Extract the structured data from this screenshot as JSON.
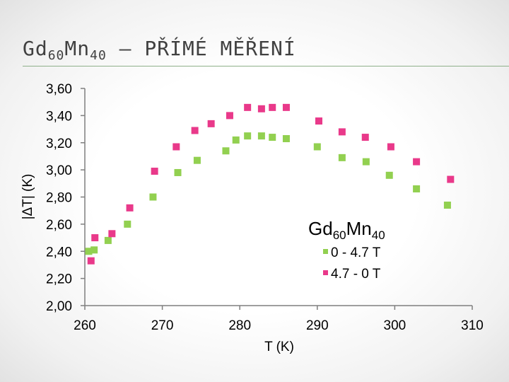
{
  "slide": {
    "title_main": "Gd",
    "title_sub1": "60",
    "title_mid": "Mn",
    "title_sub2": "40",
    "title_tail": " – PŘÍMÉ MĚŘENÍ"
  },
  "chart_data": {
    "type": "scatter",
    "xlabel": "T (K)",
    "ylabel": "|ΔT| (K)",
    "xlim": [
      260,
      310
    ],
    "ylim": [
      2.0,
      3.6
    ],
    "x_ticks": [
      "260",
      "270",
      "280",
      "290",
      "300",
      "310"
    ],
    "y_ticks": [
      "2,00",
      "2,20",
      "2,40",
      "2,60",
      "2,80",
      "3,00",
      "3,20",
      "3,40",
      "3,60"
    ],
    "grid": false,
    "legend": {
      "title_main": "Gd",
      "title_sub1": "60",
      "title_mid": "Mn",
      "title_sub2": "40",
      "placement": "right"
    },
    "series": [
      {
        "name": "0 - 4.7 T",
        "color": "#92d050",
        "points": [
          [
            260.5,
            2.4
          ],
          [
            261.2,
            2.41
          ],
          [
            263.0,
            2.48
          ],
          [
            265.5,
            2.6
          ],
          [
            268.8,
            2.8
          ],
          [
            272.0,
            2.98
          ],
          [
            274.5,
            3.07
          ],
          [
            278.2,
            3.14
          ],
          [
            279.5,
            3.22
          ],
          [
            281.0,
            3.25
          ],
          [
            282.8,
            3.25
          ],
          [
            284.2,
            3.24
          ],
          [
            286.0,
            3.23
          ],
          [
            290.0,
            3.17
          ],
          [
            293.2,
            3.09
          ],
          [
            296.3,
            3.06
          ],
          [
            299.3,
            2.96
          ],
          [
            302.8,
            2.86
          ],
          [
            306.8,
            2.74
          ]
        ]
      },
      {
        "name": "4.7 - 0 T",
        "color": "#e9398a",
        "points": [
          [
            260.8,
            2.33
          ],
          [
            261.3,
            2.5
          ],
          [
            263.5,
            2.53
          ],
          [
            265.8,
            2.72
          ],
          [
            269.0,
            2.99
          ],
          [
            271.8,
            3.17
          ],
          [
            274.2,
            3.29
          ],
          [
            276.3,
            3.34
          ],
          [
            278.7,
            3.4
          ],
          [
            281.0,
            3.46
          ],
          [
            282.8,
            3.45
          ],
          [
            284.2,
            3.46
          ],
          [
            286.0,
            3.46
          ],
          [
            290.2,
            3.36
          ],
          [
            293.2,
            3.28
          ],
          [
            296.2,
            3.24
          ],
          [
            299.5,
            3.17
          ],
          [
            302.8,
            3.06
          ],
          [
            307.2,
            2.93
          ]
        ]
      }
    ]
  }
}
